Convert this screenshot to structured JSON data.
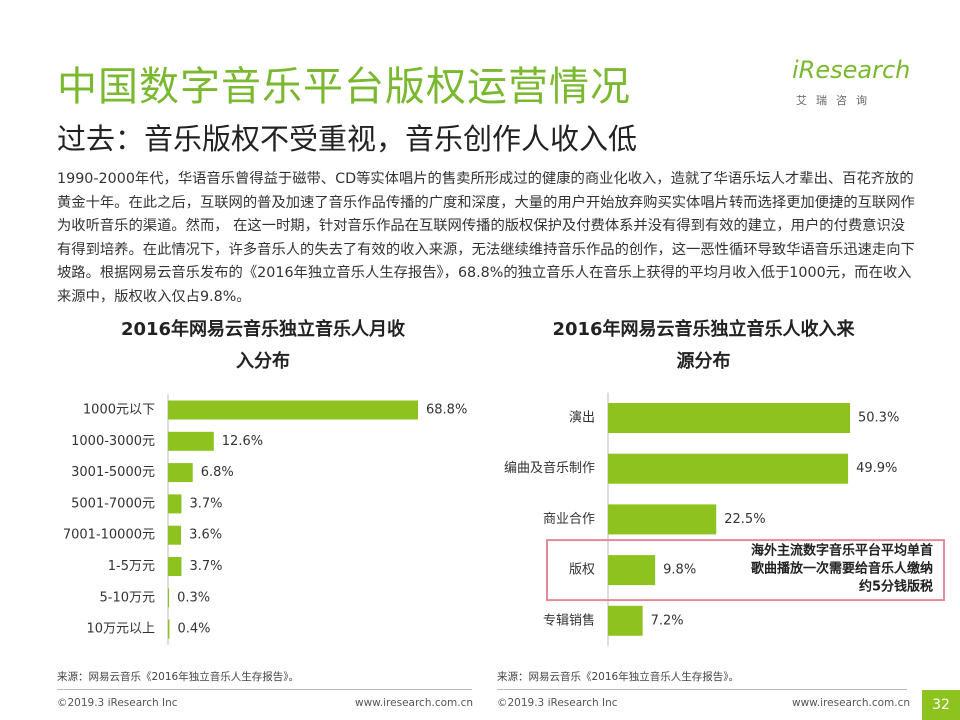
{
  "title": "中国数字音乐平台版权运营情况",
  "subtitle": "过去：音乐版权不受重视，音乐创作人收入低",
  "paragraph": "1990-2000年代，华语音乐曾得益于磁带、CD等实体唱片的售卖所形成过的健康的商业化收入，造就了华语乐坛人才辈出、百花齐放的黄金十年。在此之后，互联网的普及加速了音乐作品传播的广度和深度，大量的用户开始放弃购买实体唱片转而选择更加便捷的互联网作为收听音乐的渠道。然而， 在这一时期，针对音乐作品在互联网传播的版权保护及付费体系并没有得到有效的建立，用户的付费意识没有得到培养。在此情况下，许多音乐人的失去了有效的收入来源，无法继续维持音乐作品的创作，这一恶性循环导致华语音乐迅速走向下坡路。根据网易云音乐发布的《2016年独立音乐人生存报告》，68.8%的独立音乐人在音乐上获得的平均月收入低于1000元，而在收入来源中，版权收入仅占9.8%。",
  "logo": {
    "name": "iResearch",
    "subtitle": "艾瑞咨询"
  },
  "chart_data": [
    {
      "type": "bar",
      "orientation": "horizontal",
      "title": "2016年网易云音乐独立音乐人月收入分布",
      "categories": [
        "1000元以下",
        "1000-3000元",
        "3001-5000元",
        "5001-7000元",
        "7001-10000元",
        "1-5万元",
        "5-10万元",
        "10万元以上"
      ],
      "values": [
        68.8,
        12.6,
        6.8,
        3.7,
        3.6,
        3.7,
        0.3,
        0.4
      ],
      "value_labels": [
        "68.8%",
        "12.6%",
        "6.8%",
        "3.7%",
        "3.6%",
        "3.7%",
        "0.3%",
        "0.4%"
      ],
      "color": "#8dc21f",
      "source": "来源：网易云音乐《2016年独立音乐人生存报告》。"
    },
    {
      "type": "bar",
      "orientation": "horizontal",
      "title": "2016年网易云音乐独立音乐人收入来源分布",
      "categories": [
        "演出",
        "编曲及音乐制作",
        "商业合作",
        "版权",
        "专辑销售"
      ],
      "values": [
        50.3,
        49.9,
        22.5,
        9.8,
        7.2
      ],
      "value_labels": [
        "50.3%",
        "49.9%",
        "22.5%",
        "9.8%",
        "7.2%"
      ],
      "color": "#8dc21f",
      "annotation": [
        "海外主流数字音乐平台平均单首",
        "歌曲播放一次需要给音乐人缴纳",
        "约5分钱版税"
      ],
      "source": "来源：网易云音乐《2016年独立音乐人生存报告》。"
    }
  ],
  "footer": {
    "left": [
      "©2019.3 iResearch Inc",
      "©2019.3 iResearch Inc"
    ],
    "right": [
      "www.iresearch.com.cn",
      "www.iresearch.com.cn"
    ],
    "page": "32"
  }
}
